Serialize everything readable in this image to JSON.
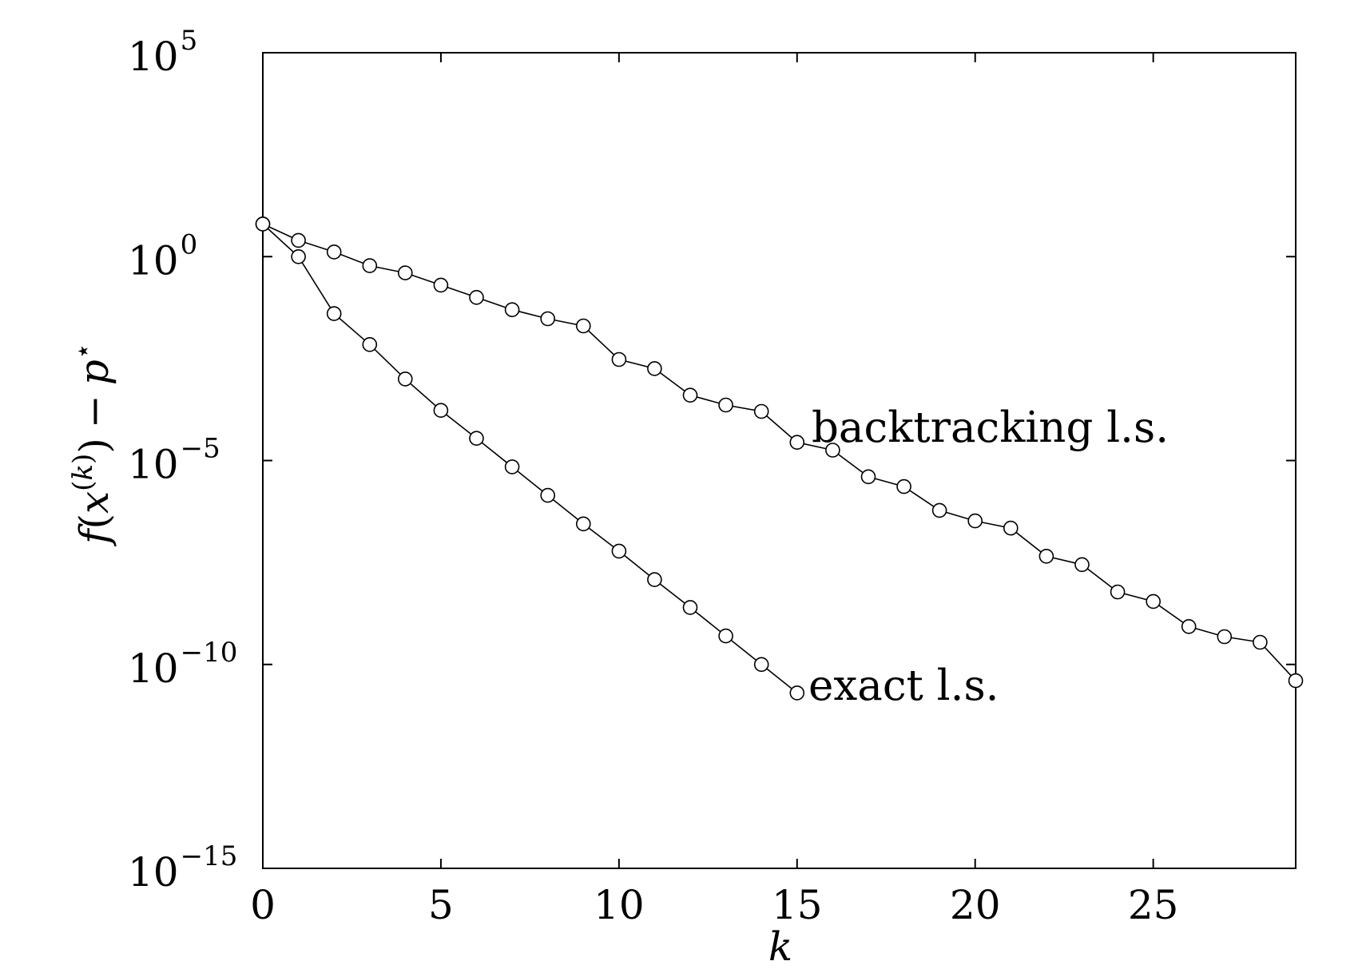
{
  "chart_data": {
    "type": "line",
    "y_scale": "log",
    "xlim": [
      0,
      29
    ],
    "ylim": [
      1e-15,
      100000.0
    ],
    "xlabel": "k",
    "ylabel": "f(x^{(k)}) − p*",
    "ylabel_parts": {
      "f": "f",
      "open": "(",
      "x": "x",
      "sup_open": "(",
      "sup_k": "k",
      "sup_close": ")",
      "close": ")",
      "minus": "−",
      "p": "p",
      "star": "⋆"
    },
    "x_ticks": [
      "0",
      "5",
      "10",
      "15",
      "20",
      "25"
    ],
    "x_tick_values": [
      0,
      5,
      10,
      15,
      20,
      25
    ],
    "y_ticks": [
      {
        "base": "10",
        "exp": "5",
        "value": 100000.0
      },
      {
        "base": "10",
        "exp": "0",
        "value": 1
      },
      {
        "base": "10",
        "exp": "−5",
        "value": 1e-05
      },
      {
        "base": "10",
        "exp": "−10",
        "value": 1e-10
      },
      {
        "base": "10",
        "exp": "−15",
        "value": 1e-15
      }
    ],
    "grid": false,
    "marker": "open-circle",
    "series": [
      {
        "name": "backtracking l.s.",
        "x": [
          0,
          1,
          2,
          3,
          4,
          5,
          6,
          7,
          8,
          9,
          10,
          11,
          12,
          13,
          14,
          15,
          16,
          17,
          18,
          19,
          20,
          21,
          22,
          23,
          24,
          25,
          26,
          27,
          28,
          29
        ],
        "y": [
          6.3,
          2.5,
          1.3,
          0.6,
          0.4,
          0.2,
          0.1,
          0.05,
          0.03,
          0.02,
          0.003,
          0.0018,
          0.0004,
          0.00023,
          0.00016,
          2.8e-05,
          1.8e-05,
          4e-06,
          2.3e-06,
          6e-07,
          3.3e-07,
          2.2e-07,
          4.5e-08,
          2.8e-08,
          6e-09,
          3.5e-09,
          8.5e-10,
          4.8e-10,
          3.5e-10,
          4e-11
        ]
      },
      {
        "name": "exact l.s.",
        "x": [
          0,
          1,
          2,
          3,
          4,
          5,
          6,
          7,
          8,
          9,
          10,
          11,
          12,
          13,
          14,
          15
        ],
        "y": [
          6.3,
          1.0,
          0.04,
          0.007,
          0.001,
          0.00017,
          3.5e-05,
          7e-06,
          1.4e-06,
          2.8e-07,
          6e-08,
          1.2e-08,
          2.5e-09,
          5e-10,
          1e-10,
          2e-11
        ]
      }
    ]
  }
}
